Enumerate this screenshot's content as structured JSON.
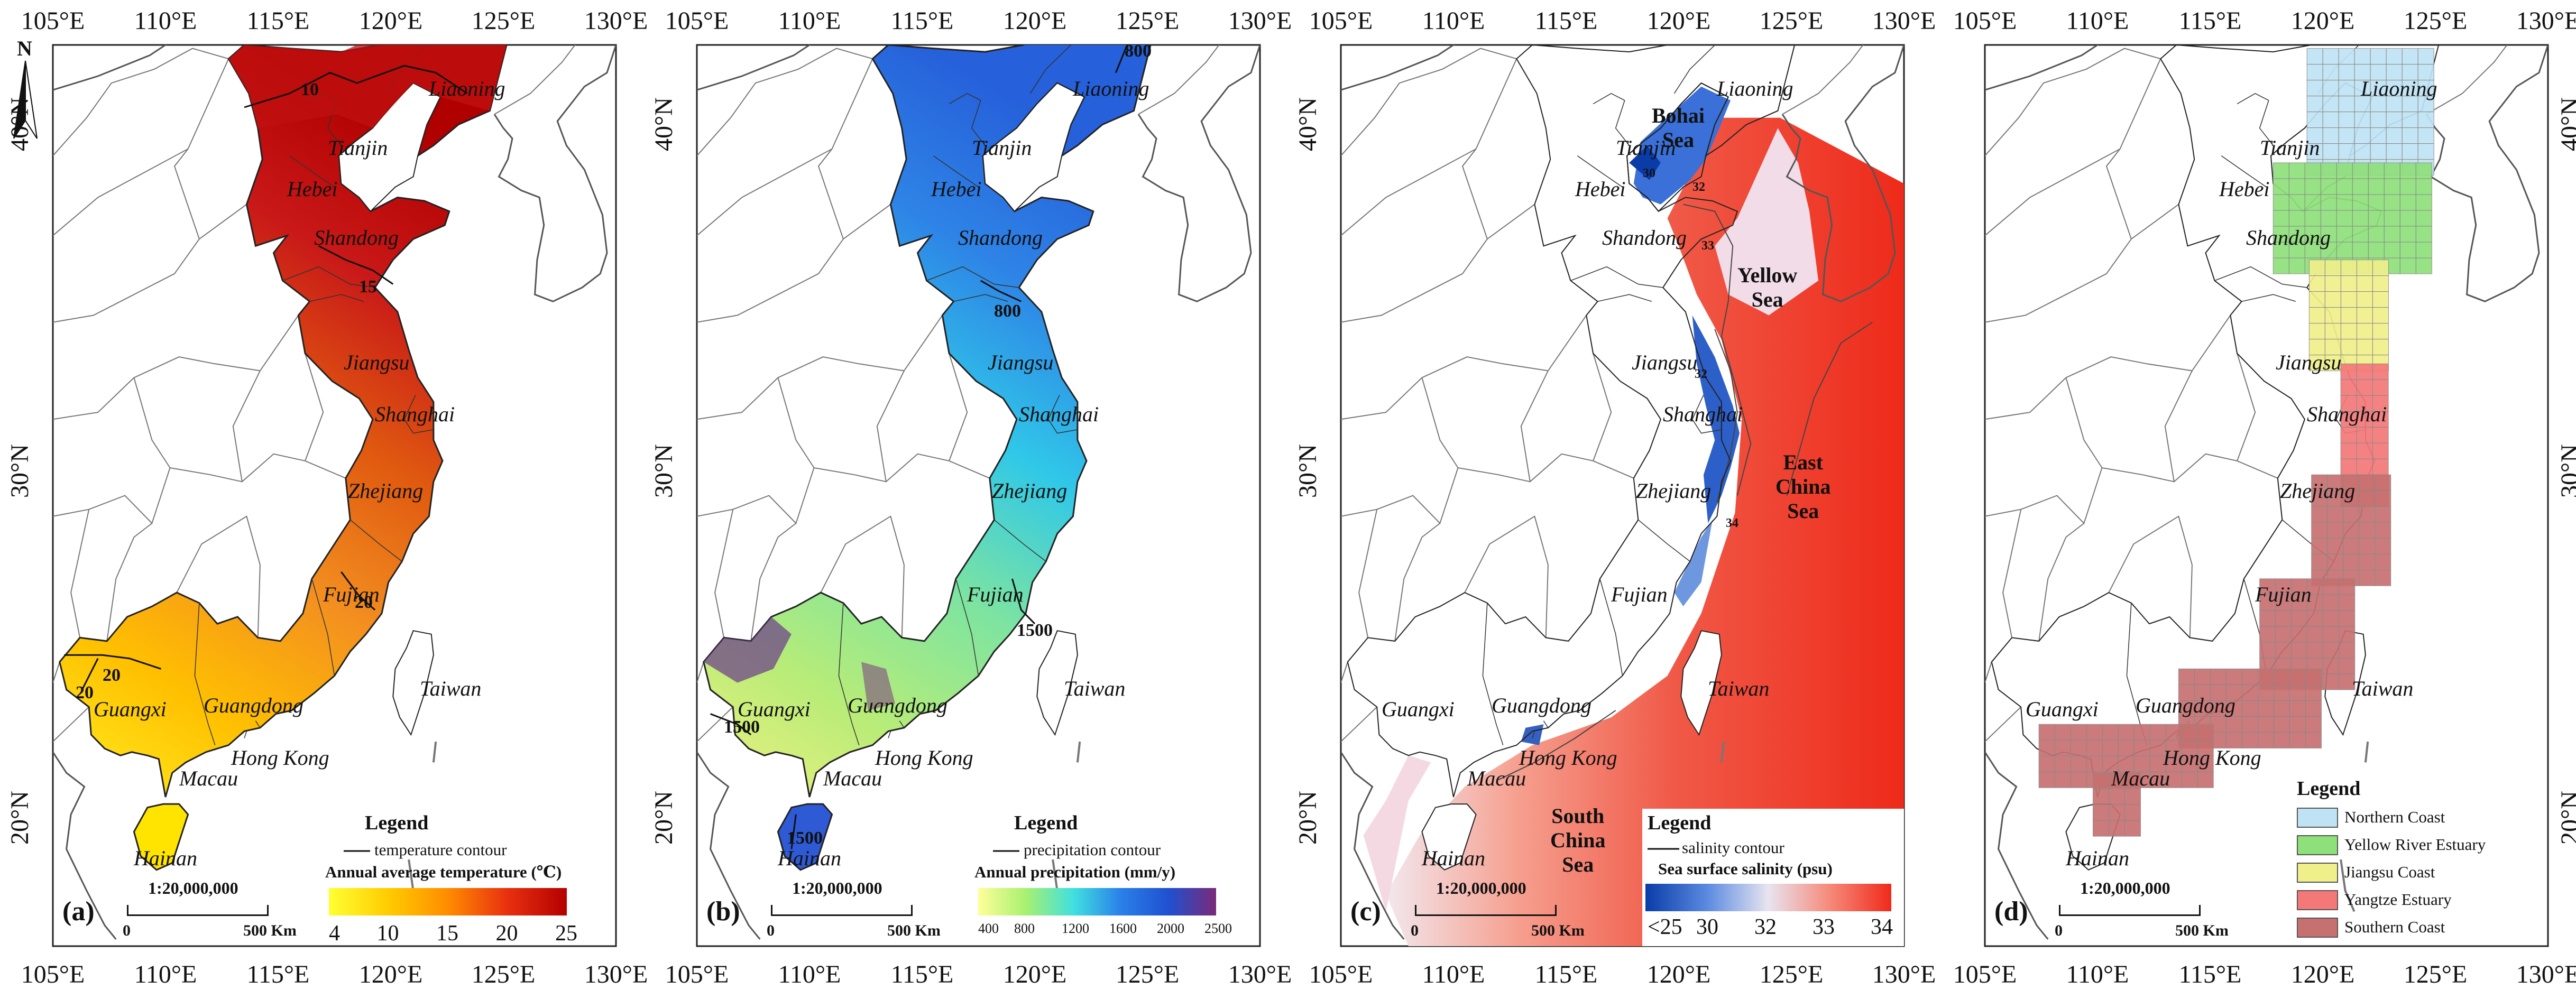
{
  "grid": {
    "lon_labels": [
      "105°E",
      "110°E",
      "115°E",
      "120°E",
      "125°E",
      "130°E"
    ],
    "lat_labels": [
      "20°N",
      "30°N",
      "40°N"
    ]
  },
  "north_label": "N",
  "scale": {
    "ratio": "1:20,000,000",
    "start": "0",
    "end": "500 Km"
  },
  "places": {
    "liaoning": "Liaoning",
    "tianjin": "Tianjin",
    "hebei": "Hebei",
    "shandong": "Shandong",
    "jiangsu": "Jiangsu",
    "shanghai": "Shanghai",
    "zhejiang": "Zhejiang",
    "fujian": "Fujian",
    "taiwan": "Taiwan",
    "guangxi": "Guangxi",
    "guangdong": "Guangdong",
    "hongkong": "Hong Kong",
    "macau": "Macau",
    "hainan": "Hainan"
  },
  "seas": {
    "bohai": "Bohai\nSea",
    "yellow": "Yellow\nSea",
    "east_china": "East\nChina\nSea",
    "south_china": "South\nChina\nSea"
  },
  "panels": [
    {
      "label": "(a)",
      "legend_title": "Legend",
      "contour_label": "temperature contour",
      "ramp_title": "Annual average temperature (℃)",
      "ramp_ticks": [
        "4",
        "10",
        "15",
        "20",
        "25"
      ],
      "ramp_colors": [
        "#ffff33",
        "#ffcc00",
        "#ff8c00",
        "#e83010",
        "#b40000"
      ],
      "contour_values": [
        "10",
        "15",
        "20",
        "20",
        "20"
      ],
      "fill_gradient": [
        "#ffee22",
        "#ffc000",
        "#f39020",
        "#e05a10",
        "#c81818",
        "#b00000"
      ]
    },
    {
      "label": "(b)",
      "legend_title": "Legend",
      "contour_label": "precipitation contour",
      "ramp_title": "Annual precipitation (mm/y)",
      "ramp_ticks": [
        "400",
        "800",
        "1200",
        "1600",
        "2000",
        "2500"
      ],
      "ramp_colors": [
        "#ffff99",
        "#a8f070",
        "#40e0e0",
        "#2a80e8",
        "#2050d0",
        "#7a2a78"
      ],
      "contour_values": [
        "800",
        "800",
        "1500",
        "1500",
        "1500"
      ],
      "fill_gradient": [
        "#f0f080",
        "#b8ec78",
        "#7ee4a0",
        "#30c8e8",
        "#2e84e6",
        "#2660da"
      ]
    },
    {
      "label": "(c)",
      "legend_title": "Legend",
      "contour_label": "salinity contour",
      "ramp_title": "Sea surface salinity (psu)",
      "ramp_ticks": [
        "<25",
        "30",
        "32",
        "33",
        "34"
      ],
      "ramp_colors": [
        "#0a3ca8",
        "#5a8ae0",
        "#e8e4f0",
        "#f58a7a",
        "#f02a1a"
      ],
      "contour_values": [
        "30",
        "32",
        "33",
        "32",
        "34"
      ]
    },
    {
      "label": "(d)",
      "legend_title": "Legend",
      "regions": [
        {
          "name": "Northern Coast",
          "color": "#bfe3f5"
        },
        {
          "name": "Yellow River Estuary",
          "color": "#8ee07a"
        },
        {
          "name": "Jiangsu Coast",
          "color": "#f0f08a"
        },
        {
          "name": "Yangtze Estuary",
          "color": "#f57878"
        },
        {
          "name": "Southern Coast",
          "color": "#c77070"
        }
      ]
    }
  ]
}
